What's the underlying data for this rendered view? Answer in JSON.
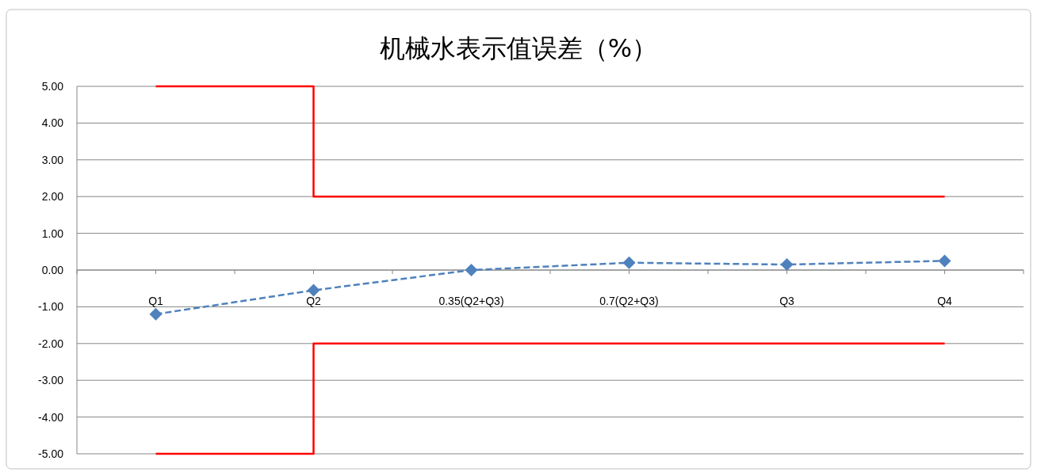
{
  "chart_data": {
    "type": "line",
    "title": "机械水表示值误差（%）",
    "categories": [
      "Q1",
      "Q2",
      "0.35(Q2+Q3)",
      "0.7(Q2+Q3)",
      "Q3",
      "Q4"
    ],
    "ylim": [
      -5,
      5
    ],
    "yticks": [
      {
        "value": 5,
        "label": "5.00"
      },
      {
        "value": 4,
        "label": "4.00"
      },
      {
        "value": 3,
        "label": "3.00"
      },
      {
        "value": 2,
        "label": "2.00"
      },
      {
        "value": 1,
        "label": "1.00"
      },
      {
        "value": 0,
        "label": "0.00"
      },
      {
        "value": -1,
        "label": "-1.00"
      },
      {
        "value": -2,
        "label": "-2.00"
      },
      {
        "value": -3,
        "label": "-3.00"
      },
      {
        "value": -4,
        "label": "-4.00"
      },
      {
        "value": -5,
        "label": "-5.00"
      }
    ],
    "grid": "y",
    "series": [
      {
        "color": "#4f81bd",
        "values": [
          -1.2,
          -0.55,
          0.0,
          0.2,
          0.15,
          0.25
        ],
        "line_style": "dashed",
        "marker": "diamond"
      },
      {
        "type": "step",
        "color": "#ff0000",
        "values": [
          5,
          5,
          2,
          2,
          2,
          2
        ],
        "line_style": "solid",
        "marker": "none"
      },
      {
        "type": "step",
        "color": "#ff0000",
        "values": [
          -5,
          -5,
          -2,
          -2,
          -2,
          -2
        ],
        "line_style": "solid",
        "marker": "none"
      }
    ]
  }
}
